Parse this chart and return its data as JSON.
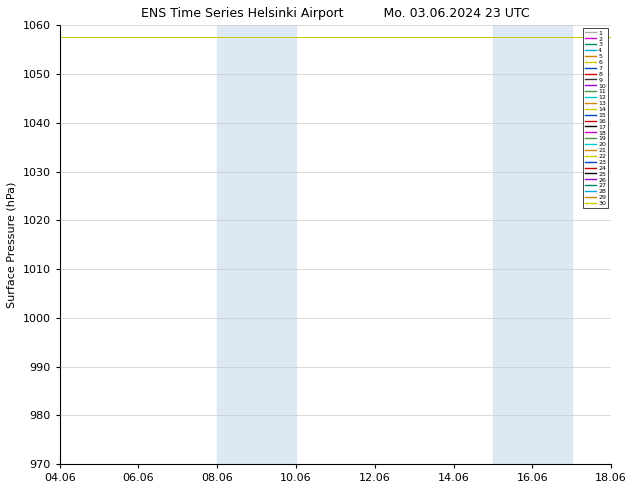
{
  "title_left": "ENS Time Series Helsinki Airport",
  "title_right": "Mo. 03.06.2024 23 UTC",
  "ylabel": "Surface Pressure (hPa)",
  "ylim": [
    970,
    1060
  ],
  "yticks": [
    970,
    980,
    990,
    1000,
    1010,
    1020,
    1030,
    1040,
    1050,
    1060
  ],
  "xtick_labels": [
    "04.06",
    "06.06",
    "08.06",
    "10.06",
    "12.06",
    "14.06",
    "16.06",
    "18.06"
  ],
  "xtick_positions": [
    0,
    2,
    4,
    6,
    8,
    10,
    12,
    14
  ],
  "xlim": [
    0,
    14
  ],
  "shaded_bands": [
    {
      "x_start": 4,
      "x_end": 6
    },
    {
      "x_start": 11,
      "x_end": 13
    }
  ],
  "shaded_color": "#dce9f5",
  "grid_color": "#cccccc",
  "member_colors": [
    "#aaaaaa",
    "#cc00cc",
    "#008866",
    "#00aaee",
    "#cc8800",
    "#cccc00",
    "#0044cc",
    "#cc0000",
    "#333333",
    "#9900cc",
    "#449944",
    "#00cccc",
    "#cc8800",
    "#cccc00",
    "#0044cc",
    "#cc0000",
    "#000000",
    "#cc00cc",
    "#449944",
    "#00cccc",
    "#cc8800",
    "#cccc00",
    "#0044cc",
    "#cc0000",
    "#000000",
    "#9900cc",
    "#008866",
    "#00aaee",
    "#cc8800",
    "#cccc00"
  ],
  "n_members": 30,
  "pressure_value": 1057.5,
  "background_color": "#ffffff",
  "figure_width": 6.34,
  "figure_height": 4.9,
  "dpi": 100
}
